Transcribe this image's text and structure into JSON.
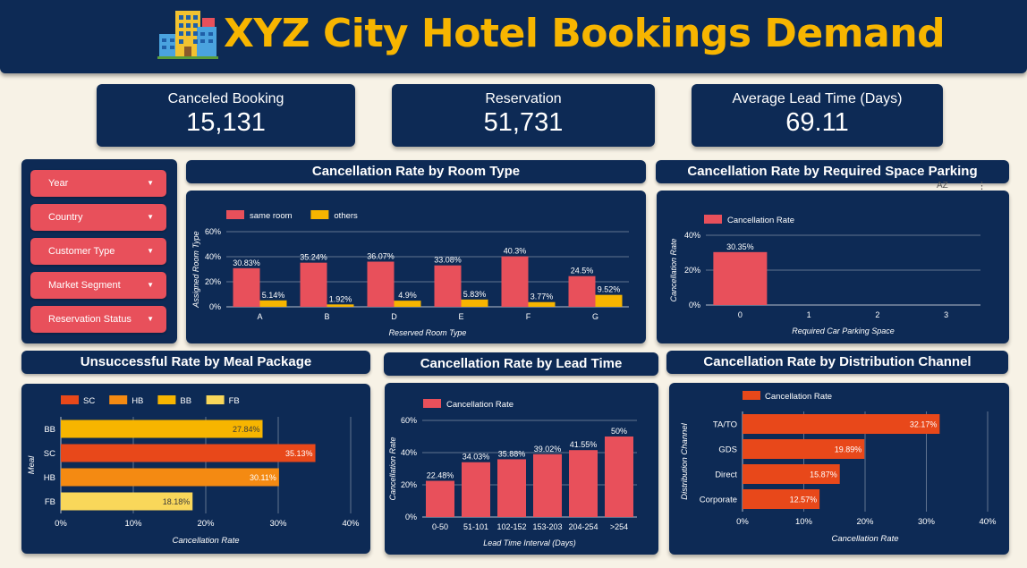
{
  "header": {
    "title": "XYZ City Hotel Bookings Demand"
  },
  "kpis": [
    {
      "label": "Canceled Booking",
      "value": "15,131"
    },
    {
      "label": "Reservation",
      "value": "51,731"
    },
    {
      "label": "Average Lead Time (Days)",
      "value": "69.11"
    }
  ],
  "filters": [
    "Year",
    "Country",
    "Customer Type",
    "Market Segment",
    "Reservation Status"
  ],
  "colors": {
    "navy": "#0d2a55",
    "red": "#e8505b",
    "orange": "#f7b500",
    "deep_orange": "#e8481a",
    "hb_orange": "#f48a12",
    "gold": "#f7b500",
    "light_yellow": "#f9d75a"
  },
  "icons": [
    "hotel-icon",
    "chevron-down-icon"
  ],
  "toolbar": {
    "sort_label": "AZ",
    "more_label": "⋮"
  },
  "panels": {
    "room_type": {
      "title": "Cancellation Rate by Room Type"
    },
    "parking": {
      "title": "Cancellation Rate by Required Space Parking"
    },
    "meal": {
      "title": "Unsuccessful Rate by Meal Package"
    },
    "lead_time": {
      "title": "Cancellation Rate by Lead Time"
    },
    "distribution": {
      "title": "Cancellation Rate by Distribution Channel"
    }
  },
  "chart_data": [
    {
      "id": "room_type",
      "type": "bar",
      "categories": [
        "A",
        "B",
        "D",
        "E",
        "F",
        "G"
      ],
      "series": [
        {
          "name": "same room",
          "values": [
            30.83,
            35.24,
            36.07,
            33.08,
            40.3,
            24.5
          ],
          "labels": [
            "30.83%",
            "35.24%",
            "36.07%",
            "33.08%",
            "40.3%",
            "24.5%"
          ]
        },
        {
          "name": "others",
          "values": [
            5.14,
            1.92,
            4.9,
            5.83,
            3.77,
            9.52
          ],
          "labels": [
            "5.14%",
            "1.92%",
            "4.9%",
            "5.83%",
            "3.77%",
            "9.52%"
          ]
        }
      ],
      "xlabel": "Reserved Room Type",
      "ylabel": "Assigned Room Type",
      "yticks": [
        "0%",
        "20%",
        "40%",
        "60%"
      ],
      "ylim": [
        0,
        60
      ],
      "legend": "top-left",
      "grid": true
    },
    {
      "id": "parking",
      "type": "bar",
      "categories": [
        "0",
        "1",
        "2",
        "3"
      ],
      "series": [
        {
          "name": "Cancellation Rate",
          "values": [
            30.35,
            null,
            null,
            null
          ],
          "labels": [
            "30.35%",
            "",
            "",
            ""
          ]
        }
      ],
      "xlabel": "Required Car Parking Space",
      "ylabel": "Cancellation Rate",
      "yticks": [
        "0%",
        "20%",
        "40%"
      ],
      "ylim": [
        0,
        40
      ],
      "legend": "top-left",
      "grid": true
    },
    {
      "id": "meal",
      "type": "bar",
      "orientation": "horizontal",
      "categories": [
        "BB",
        "SC",
        "HB",
        "FB"
      ],
      "values": [
        27.84,
        35.13,
        30.11,
        18.18
      ],
      "labels": [
        "27.84%",
        "35.13%",
        "30.11%",
        "18.18%"
      ],
      "legend_entries": [
        "SC",
        "HB",
        "BB",
        "FB"
      ],
      "xlabel": "Cancellation Rate",
      "ylabel": "Meal",
      "xticks": [
        "0%",
        "10%",
        "20%",
        "30%",
        "40%"
      ],
      "xlim": [
        0,
        40
      ],
      "legend": "top-left",
      "grid": true
    },
    {
      "id": "lead_time",
      "type": "bar",
      "categories": [
        "0-50",
        "51-101",
        "102-152",
        "153-203",
        "204-254",
        ">254"
      ],
      "series": [
        {
          "name": "Cancellation Rate",
          "values": [
            22.48,
            34.03,
            35.88,
            39.02,
            41.55,
            50
          ],
          "labels": [
            "22.48%",
            "34.03%",
            "35.88%",
            "39.02%",
            "41.55%",
            "50%"
          ]
        }
      ],
      "xlabel": "Lead Time Interval (Days)",
      "ylabel": "Cancellation Rate",
      "yticks": [
        "0%",
        "20%",
        "40%",
        "60%"
      ],
      "ylim": [
        0,
        60
      ],
      "legend": "top-left",
      "grid": true
    },
    {
      "id": "distribution",
      "type": "bar",
      "orientation": "horizontal",
      "categories": [
        "TA/TO",
        "GDS",
        "Direct",
        "Corporate"
      ],
      "series": [
        {
          "name": "Cancellation Rate",
          "values": [
            32.17,
            19.89,
            15.87,
            12.57
          ],
          "labels": [
            "32.17%",
            "19.89%",
            "15.87%",
            "12.57%"
          ]
        }
      ],
      "xlabel": "Cancellation Rate",
      "ylabel": "Distribution Channel",
      "xticks": [
        "0%",
        "10%",
        "20%",
        "30%",
        "40%"
      ],
      "xlim": [
        0,
        40
      ],
      "legend": "top-left",
      "grid": true
    }
  ]
}
